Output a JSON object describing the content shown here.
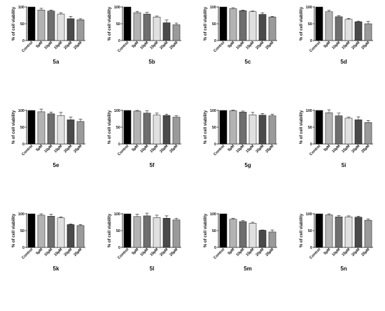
{
  "figure": {
    "ylabel": "% of cell viability",
    "y_ticks": [
      0,
      50,
      100
    ],
    "categories": [
      "Control",
      "5µM",
      "10µM",
      "15µM",
      "20µM",
      "25µM"
    ],
    "bar_colors": [
      "#000000",
      "#b3b3b3",
      "#6e6e6e",
      "#e0e0e0",
      "#4a4a4a",
      "#9a9a9a"
    ]
  },
  "chart_data": [
    {
      "type": "bar",
      "title": "5a",
      "categories": [
        "Control",
        "5µM",
        "10µM",
        "15µM",
        "20µM",
        "25µM"
      ],
      "values": [
        100,
        91,
        88,
        79,
        65,
        62
      ],
      "errors": [
        0,
        5,
        3,
        4,
        7,
        3
      ],
      "ylabel": "% of cell viability",
      "ylim": [
        0,
        100
      ]
    },
    {
      "type": "bar",
      "title": "5b",
      "categories": [
        "Control",
        "5µM",
        "10µM",
        "15µM",
        "20µM",
        "25µM"
      ],
      "values": [
        100,
        83,
        79,
        70,
        53,
        47
      ],
      "errors": [
        0,
        4,
        5,
        3,
        8,
        5
      ],
      "ylabel": "% of cell viability",
      "ylim": [
        0,
        100
      ]
    },
    {
      "type": "bar",
      "title": "5c",
      "categories": [
        "Control",
        "5µM",
        "10µM",
        "15µM",
        "20µM",
        "25µM"
      ],
      "values": [
        100,
        95,
        89,
        86,
        78,
        70
      ],
      "errors": [
        0,
        3,
        2,
        2,
        5,
        2
      ],
      "ylabel": "% of cell viability",
      "ylim": [
        0,
        100
      ]
    },
    {
      "type": "bar",
      "title": "5d",
      "categories": [
        "Control",
        "5µM",
        "10µM",
        "15µM",
        "20µM",
        "25µM"
      ],
      "values": [
        100,
        86,
        71,
        63,
        56,
        50
      ],
      "errors": [
        0,
        4,
        3,
        3,
        2,
        7
      ],
      "ylabel": "% of cell viability",
      "ylim": [
        0,
        100
      ]
    },
    {
      "type": "bar",
      "title": "5e",
      "categories": [
        "Control",
        "5µM",
        "10µM",
        "15µM",
        "20µM",
        "25µM"
      ],
      "values": [
        100,
        96,
        90,
        85,
        72,
        67
      ],
      "errors": [
        0,
        8,
        5,
        9,
        8,
        7
      ],
      "ylabel": "% of cell viability",
      "ylim": [
        0,
        100
      ]
    },
    {
      "type": "bar",
      "title": "5f",
      "categories": [
        "Control",
        "5µM",
        "10µM",
        "15µM",
        "20µM",
        "25µM"
      ],
      "values": [
        100,
        98,
        92,
        86,
        85,
        80
      ],
      "errors": [
        0,
        2,
        7,
        6,
        4,
        4
      ],
      "ylabel": "% of cell viability",
      "ylim": [
        0,
        100
      ]
    },
    {
      "type": "bar",
      "title": "5g",
      "categories": [
        "Control",
        "5µM",
        "10µM",
        "15µM",
        "20µM",
        "25µM"
      ],
      "values": [
        100,
        99,
        95,
        87,
        86,
        84
      ],
      "errors": [
        0,
        2,
        3,
        7,
        5,
        5
      ],
      "ylabel": "% of cell viability",
      "ylim": [
        0,
        100
      ]
    },
    {
      "type": "bar",
      "title": "5i",
      "categories": [
        "Control",
        "5µM",
        "10µM",
        "15µM",
        "20µM",
        "25µM"
      ],
      "values": [
        100,
        93,
        84,
        77,
        72,
        64
      ],
      "errors": [
        0,
        9,
        8,
        3,
        9,
        6
      ],
      "ylabel": "% of cell viability",
      "ylim": [
        0,
        100
      ]
    },
    {
      "type": "bar",
      "title": "5k",
      "categories": [
        "Control",
        "5µM",
        "10µM",
        "15µM",
        "20µM",
        "25µM"
      ],
      "values": [
        100,
        96,
        93,
        88,
        68,
        65
      ],
      "errors": [
        0,
        4,
        6,
        3,
        2,
        3
      ],
      "ylabel": "% of cell viability",
      "ylim": [
        0,
        100
      ]
    },
    {
      "type": "bar",
      "title": "5l",
      "categories": [
        "Control",
        "5µM",
        "10µM",
        "15µM",
        "20µM",
        "25µM"
      ],
      "values": [
        100,
        92,
        94,
        89,
        87,
        82
      ],
      "errors": [
        0,
        7,
        8,
        7,
        7,
        5
      ],
      "ylabel": "% of cell viability",
      "ylim": [
        0,
        100
      ]
    },
    {
      "type": "bar",
      "title": "5m",
      "categories": [
        "Control",
        "5µM",
        "10µM",
        "15µM",
        "20µM",
        "25µM"
      ],
      "values": [
        100,
        84,
        77,
        72,
        51,
        46
      ],
      "errors": [
        0,
        3,
        3,
        3,
        1,
        6
      ],
      "ylabel": "% of cell viability",
      "ylim": [
        0,
        100
      ]
    },
    {
      "type": "bar",
      "title": "5n",
      "categories": [
        "Control",
        "5µM",
        "10µM",
        "15µM",
        "20µM",
        "25µM"
      ],
      "values": [
        100,
        97,
        91,
        91,
        90,
        81
      ],
      "errors": [
        0,
        3,
        4,
        3,
        3,
        4
      ],
      "ylabel": "% of cell viability",
      "ylim": [
        0,
        100
      ]
    }
  ]
}
